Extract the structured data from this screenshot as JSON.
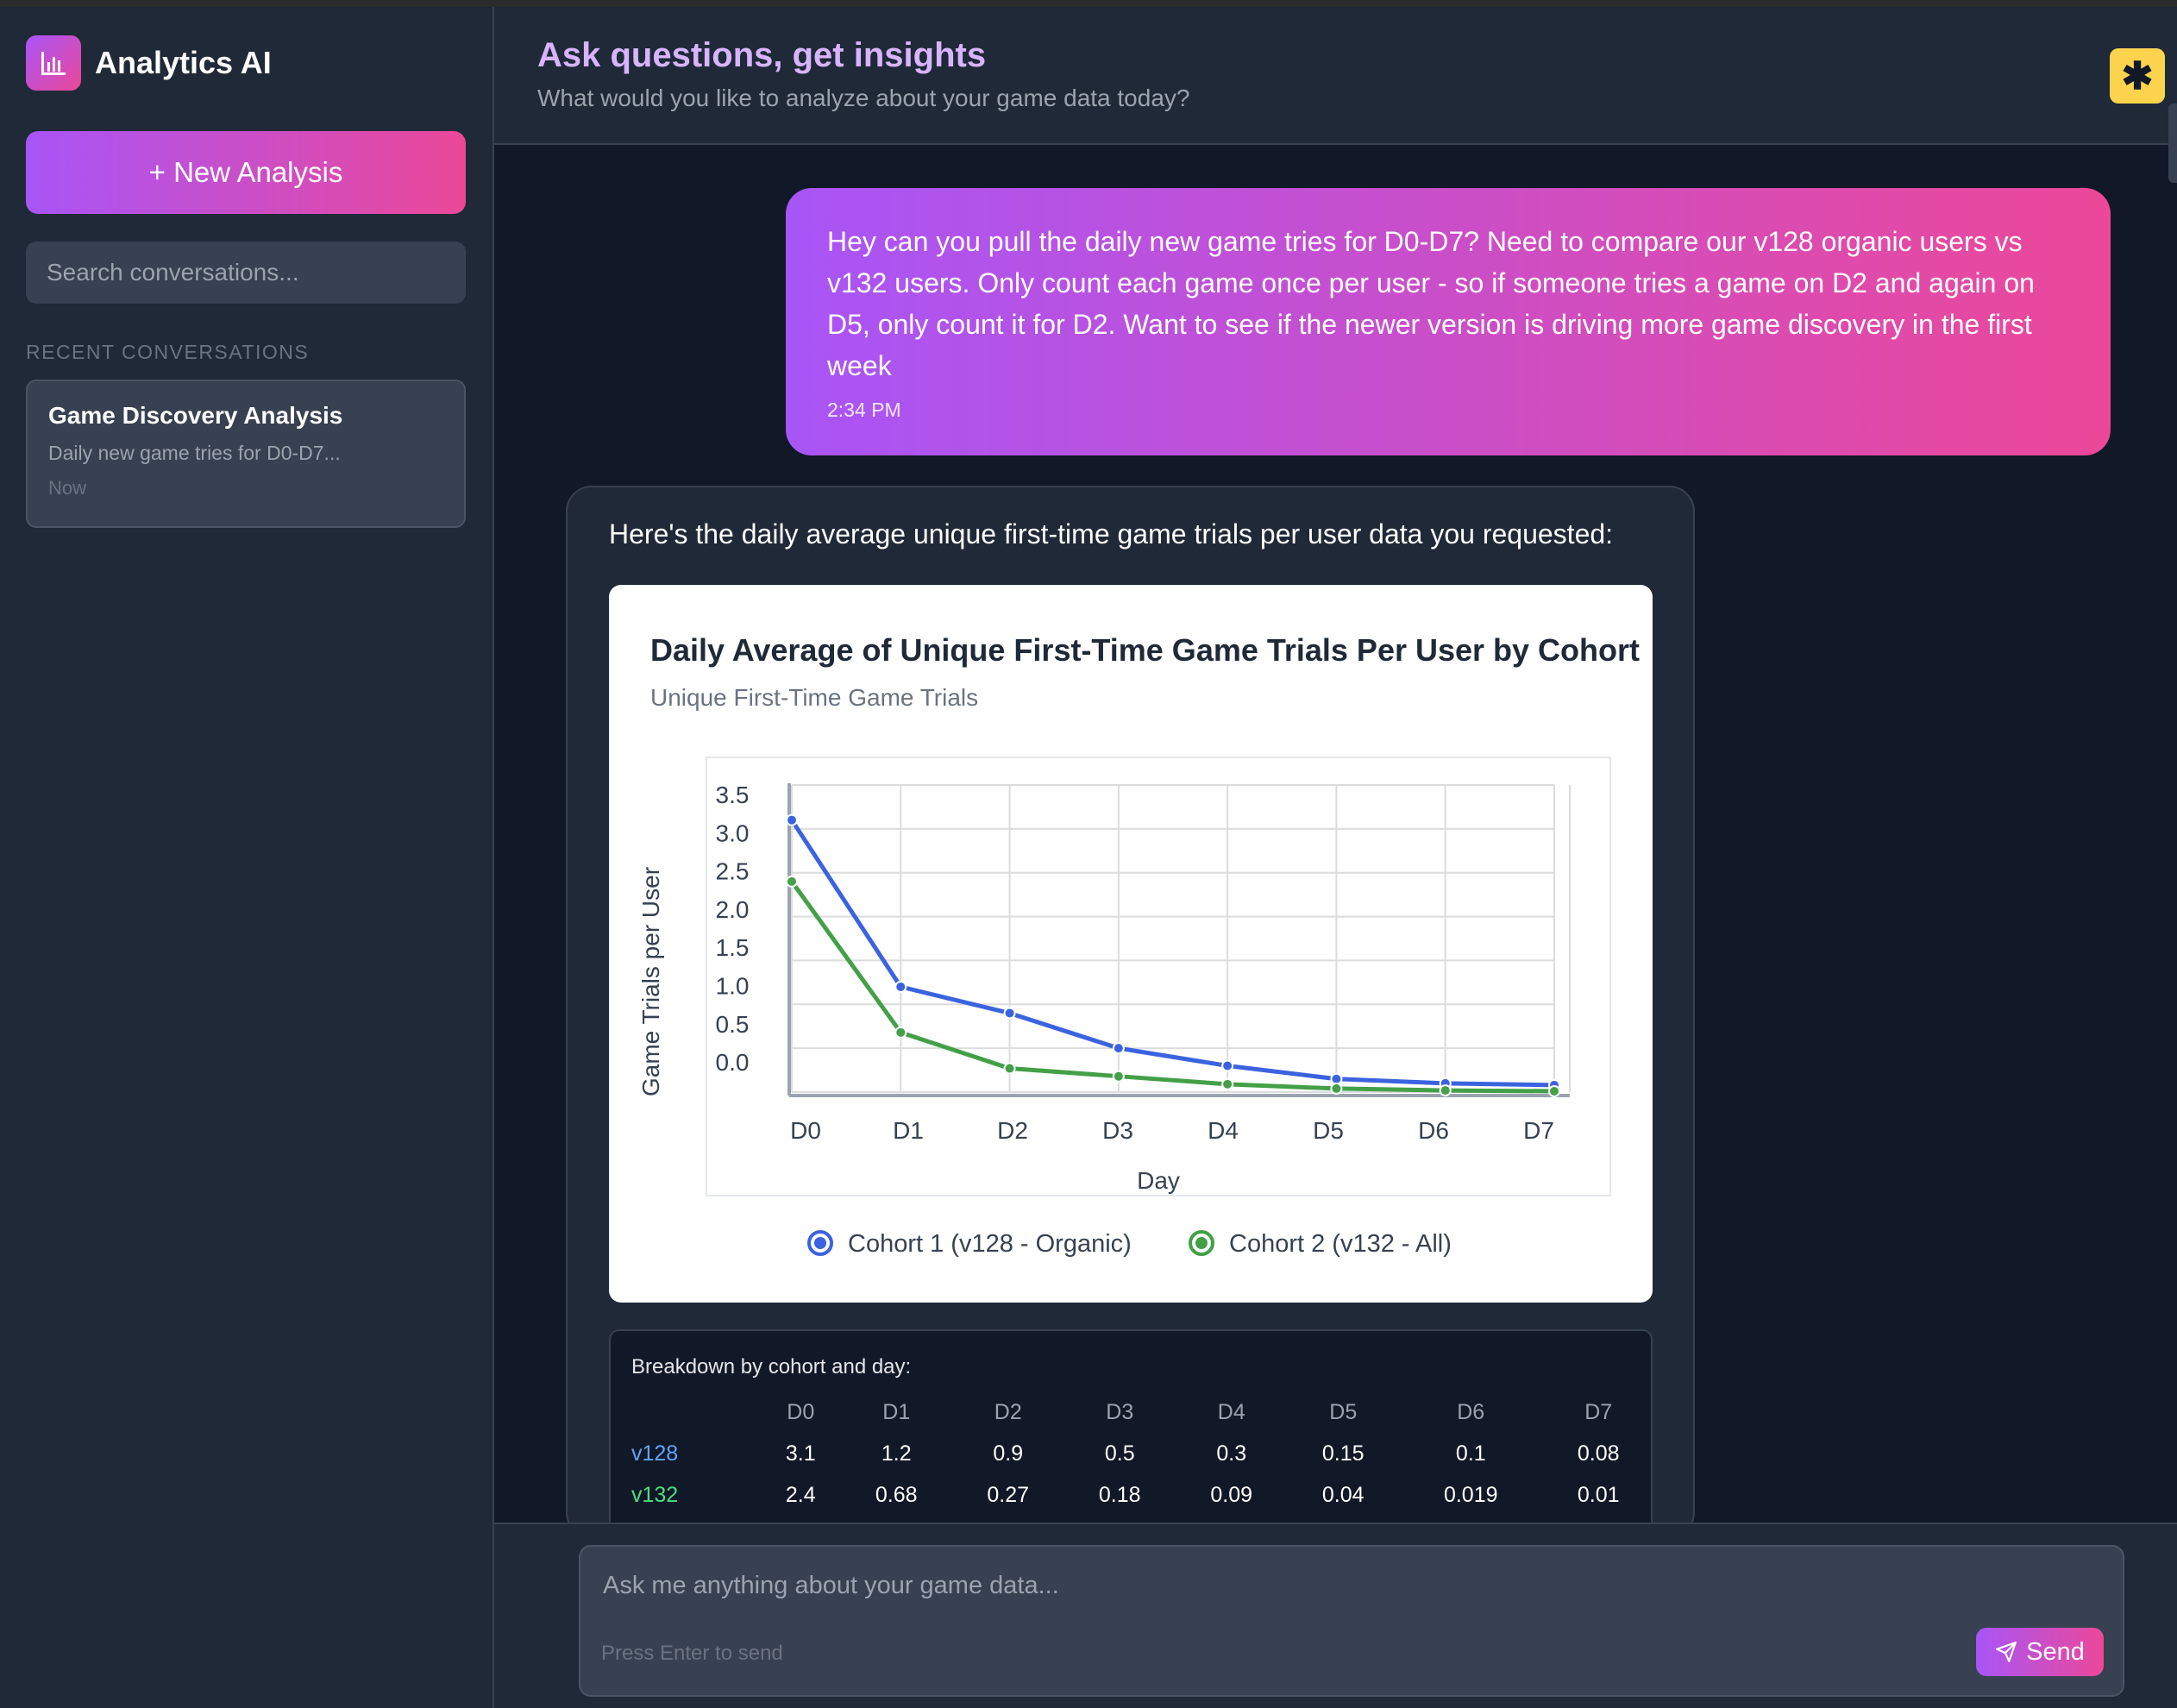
{
  "sidebar": {
    "brand": "Analytics AI",
    "new_analysis_label": "+ New Analysis",
    "search_placeholder": "Search conversations...",
    "recent_heading": "RECENT CONVERSATIONS",
    "conversations": [
      {
        "title": "Game Discovery Analysis",
        "preview": "Daily new game tries for D0-D7...",
        "time": "Now"
      }
    ]
  },
  "header": {
    "title": "Ask questions, get insights",
    "subtitle": "What would you like to analyze about your game data today?"
  },
  "messages": {
    "user": {
      "text": "Hey can you pull the daily new game tries for D0-D7? Need to compare our v128 organic users vs v132 users. Only count each game once per user - so if someone tries a game on D2 and again on D5, only count it for D2. Want to see if the newer version is driving more game discovery in the first week",
      "time": "2:34 PM"
    },
    "ai": {
      "intro": "Here's the daily average unique first-time game trials per user data you requested:",
      "breakdown_title": "Breakdown by cohort and day:",
      "table": {
        "columns": [
          "D0",
          "D1",
          "D2",
          "D3",
          "D4",
          "D5",
          "D6",
          "D7"
        ],
        "rows": [
          {
            "label": "v128",
            "values": [
              "3.1",
              "1.2",
              "0.9",
              "0.5",
              "0.3",
              "0.15",
              "0.1",
              "0.08"
            ]
          },
          {
            "label": "v132",
            "values": [
              "2.4",
              "0.68",
              "0.27",
              "0.18",
              "0.09",
              "0.04",
              "0.019",
              "0.01"
            ]
          }
        ]
      }
    }
  },
  "chart_data": {
    "type": "line",
    "title": "Daily Average of Unique First-Time Game Trials Per User by Cohort",
    "subtitle": "Unique First-Time Game Trials",
    "xlabel": "Day",
    "ylabel": "Game Trials per User",
    "categories": [
      "D0",
      "D1",
      "D2",
      "D3",
      "D4",
      "D5",
      "D6",
      "D7"
    ],
    "yticks": [
      "3.5",
      "3.0",
      "2.5",
      "2.0",
      "1.5",
      "1.0",
      "0.5",
      "0.0"
    ],
    "ylim": [
      0,
      3.5
    ],
    "grid": true,
    "legend_position": "bottom",
    "series": [
      {
        "name": "Cohort 1 (v128 - Organic)",
        "color": "#3b63e0",
        "values": [
          3.1,
          1.2,
          0.9,
          0.5,
          0.3,
          0.15,
          0.1,
          0.08
        ]
      },
      {
        "name": "Cohort 2 (v132 - All)",
        "color": "#43a047",
        "values": [
          2.4,
          0.68,
          0.27,
          0.18,
          0.09,
          0.04,
          0.019,
          0.01
        ]
      }
    ]
  },
  "input": {
    "placeholder": "Ask me anything about your game data...",
    "hint": "Press Enter to send",
    "send_label": "Send"
  },
  "colors": {
    "accent_from": "#a855f7",
    "accent_to": "#ec4899",
    "background": "#111827",
    "panel": "#1f2937",
    "v128": "#60a5fa",
    "v132": "#4ade80",
    "help_button": "#fcd34d"
  },
  "icons": {
    "brand": "bar-chart-icon",
    "help": "asterisk-icon",
    "send": "paper-plane-icon"
  }
}
